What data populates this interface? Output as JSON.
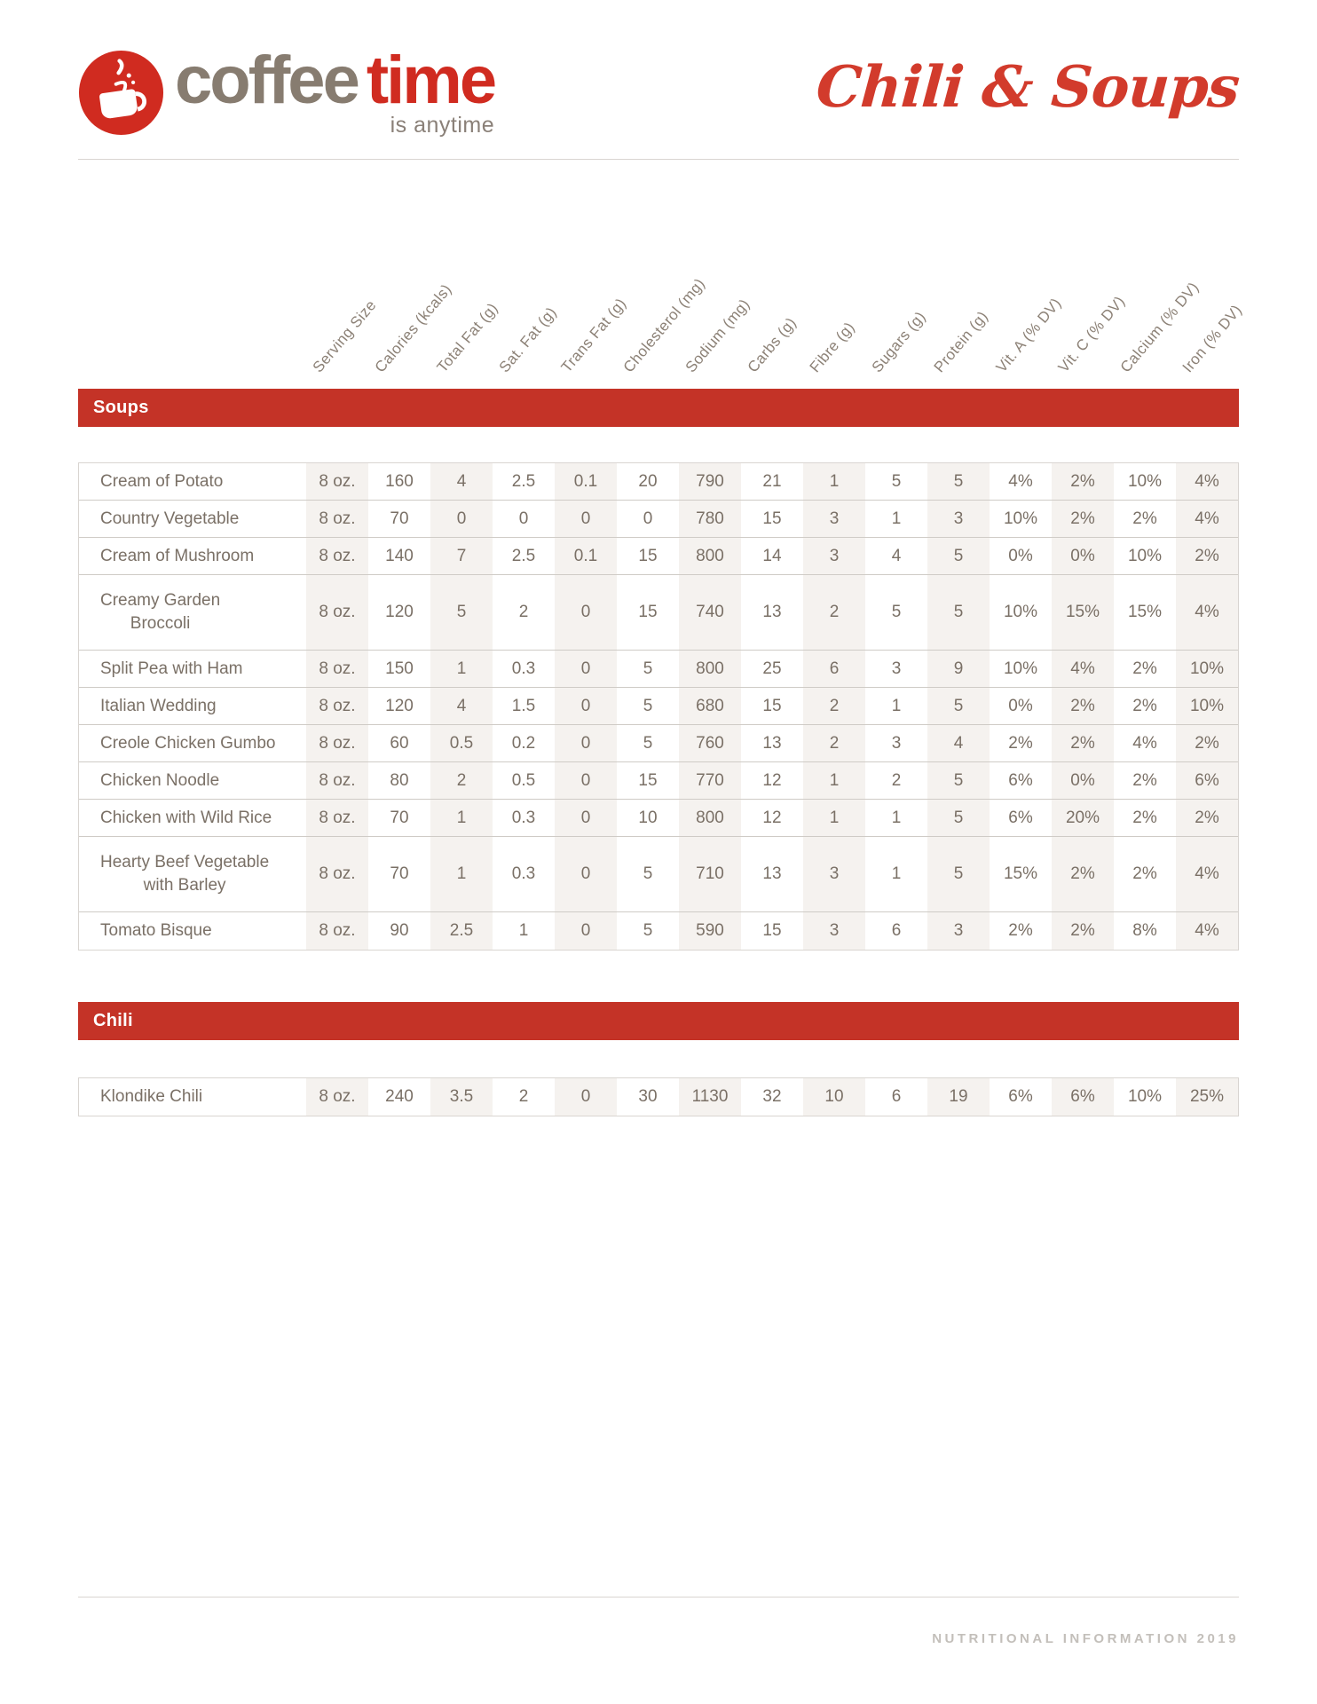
{
  "logo": {
    "brand_part1": "coffee",
    "brand_part2": "time",
    "tagline": "is anytime",
    "icon": "coffee-cup-icon"
  },
  "title": "Chili & Soups",
  "colors": {
    "bar_red": "#c43327",
    "logo_red": "#d02b20",
    "script_red": "#d23b2c",
    "brand_brown": "#877c70",
    "text": "#7a7066",
    "header_text": "#8c8176",
    "tagline_gray": "#8a8078",
    "stripe": "#f5f2ef",
    "border": "#d9d5d1",
    "footer_text": "#c3bfba"
  },
  "columns": [
    "Serving Size",
    "Calories (kcals)",
    "Total Fat (g)",
    "Sat. Fat (g)",
    "Trans Fat (g)",
    "Cholesterol (mg)",
    "Sodium (mg)",
    "Carbs (g)",
    "Fibre (g)",
    "Sugars (g)",
    "Protein (g)",
    "Vit. A (% DV)",
    "Vit. C (% DV)",
    "Calcium (% DV)",
    "Iron (% DV)"
  ],
  "sections": [
    {
      "title": "Soups",
      "rows": [
        {
          "name": "Cream of Potato",
          "values": [
            "8 oz.",
            "160",
            "4",
            "2.5",
            "0.1",
            "20",
            "790",
            "21",
            "1",
            "5",
            "5",
            "4%",
            "2%",
            "10%",
            "4%"
          ]
        },
        {
          "name": "Country Vegetable",
          "values": [
            "8 oz.",
            "70",
            "0",
            "0",
            "0",
            "0",
            "780",
            "15",
            "3",
            "1",
            "3",
            "10%",
            "2%",
            "2%",
            "4%"
          ]
        },
        {
          "name": "Cream of Mushroom",
          "values": [
            "8 oz.",
            "140",
            "7",
            "2.5",
            "0.1",
            "15",
            "800",
            "14",
            "3",
            "4",
            "5",
            "0%",
            "0%",
            "10%",
            "2%"
          ]
        },
        {
          "name": "Creamy Garden\nBroccoli",
          "values": [
            "8 oz.",
            "120",
            "5",
            "2",
            "0",
            "15",
            "740",
            "13",
            "2",
            "5",
            "5",
            "10%",
            "15%",
            "15%",
            "4%"
          ]
        },
        {
          "name": "Split Pea with Ham",
          "values": [
            "8 oz.",
            "150",
            "1",
            "0.3",
            "0",
            "5",
            "800",
            "25",
            "6",
            "3",
            "9",
            "10%",
            "4%",
            "2%",
            "10%"
          ]
        },
        {
          "name": "Italian Wedding",
          "values": [
            "8 oz.",
            "120",
            "4",
            "1.5",
            "0",
            "5",
            "680",
            "15",
            "2",
            "1",
            "5",
            "0%",
            "2%",
            "2%",
            "10%"
          ]
        },
        {
          "name": "Creole Chicken Gumbo",
          "values": [
            "8 oz.",
            "60",
            "0.5",
            "0.2",
            "0",
            "5",
            "760",
            "13",
            "2",
            "3",
            "4",
            "2%",
            "2%",
            "4%",
            "2%"
          ]
        },
        {
          "name": "Chicken Noodle",
          "values": [
            "8 oz.",
            "80",
            "2",
            "0.5",
            "0",
            "15",
            "770",
            "12",
            "1",
            "2",
            "5",
            "6%",
            "0%",
            "2%",
            "6%"
          ]
        },
        {
          "name": "Chicken with Wild Rice",
          "values": [
            "8 oz.",
            "70",
            "1",
            "0.3",
            "0",
            "10",
            "800",
            "12",
            "1",
            "1",
            "5",
            "6%",
            "20%",
            "2%",
            "2%"
          ]
        },
        {
          "name": "Hearty Beef Vegetable\nwith Barley",
          "values": [
            "8 oz.",
            "70",
            "1",
            "0.3",
            "0",
            "5",
            "710",
            "13",
            "3",
            "1",
            "5",
            "15%",
            "2%",
            "2%",
            "4%"
          ]
        },
        {
          "name": "Tomato Bisque",
          "values": [
            "8 oz.",
            "90",
            "2.5",
            "1",
            "0",
            "5",
            "590",
            "15",
            "3",
            "6",
            "3",
            "2%",
            "2%",
            "8%",
            "4%"
          ]
        }
      ]
    },
    {
      "title": "Chili",
      "rows": [
        {
          "name": "Klondike Chili",
          "values": [
            "8 oz.",
            "240",
            "3.5",
            "2",
            "0",
            "30",
            "1130",
            "32",
            "10",
            "6",
            "19",
            "6%",
            "6%",
            "10%",
            "25%"
          ]
        }
      ]
    }
  ],
  "footer": {
    "text": "NUTRITIONAL INFORMATION 2019"
  }
}
